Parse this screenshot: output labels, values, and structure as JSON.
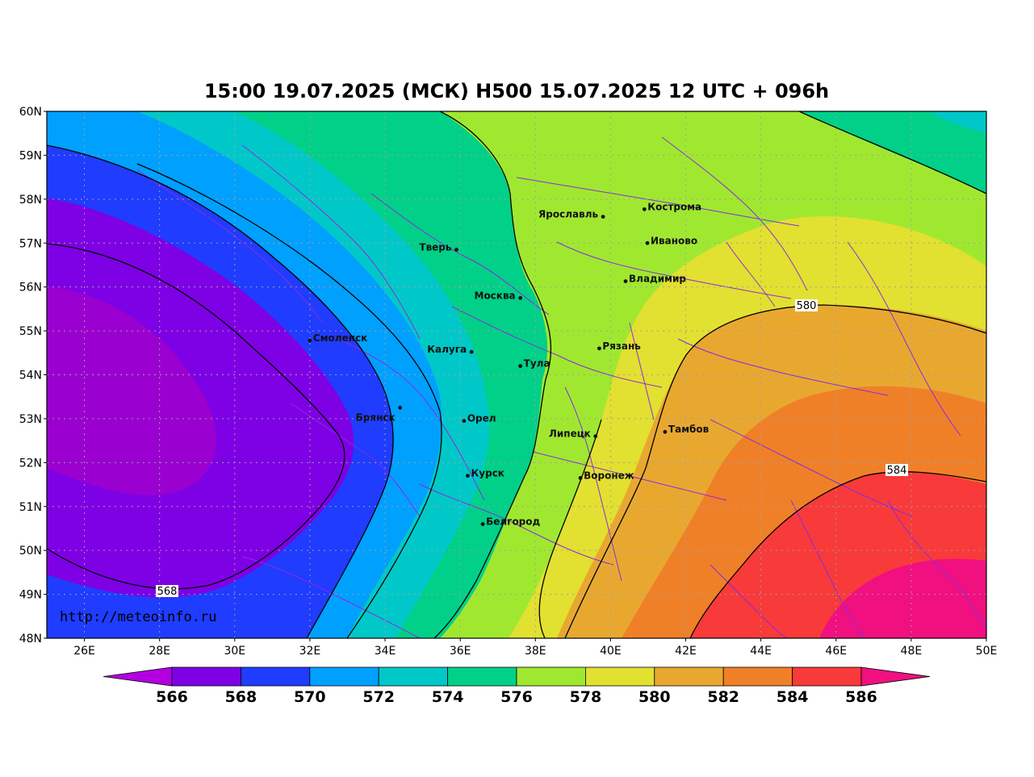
{
  "title": "15:00 19.07.2025 (МСК) H500  15.07.2025 12 UTC + 096h",
  "credit": "http://meteoinfo.ru",
  "axes": {
    "lat_ticks": [
      "60N",
      "59N",
      "58N",
      "57N",
      "56N",
      "55N",
      "54N",
      "53N",
      "52N",
      "51N",
      "50N",
      "49N",
      "48N"
    ],
    "lon_ticks": [
      "26E",
      "28E",
      "30E",
      "32E",
      "34E",
      "36E",
      "38E",
      "40E",
      "42E",
      "44E",
      "46E",
      "48E",
      "50E"
    ],
    "lat_values": [
      60,
      59,
      58,
      57,
      56,
      55,
      54,
      53,
      52,
      51,
      50,
      49,
      48
    ],
    "lon_values": [
      26,
      28,
      30,
      32,
      34,
      36,
      38,
      40,
      42,
      44,
      46,
      48,
      50
    ],
    "lon_range": [
      25,
      50
    ],
    "lat_range": [
      48,
      60
    ]
  },
  "cities": [
    {
      "name": "Кострома",
      "lon": 40.9,
      "lat": 57.77
    },
    {
      "name": "Ярославль",
      "lon": 39.8,
      "lat": 57.6
    },
    {
      "name": "Иваново",
      "lon": 40.98,
      "lat": 57.0
    },
    {
      "name": "Тверь",
      "lon": 35.9,
      "lat": 56.85
    },
    {
      "name": "Владимир",
      "lon": 40.4,
      "lat": 56.13
    },
    {
      "name": "Москва",
      "lon": 37.6,
      "lat": 55.75
    },
    {
      "name": "Смоленск",
      "lon": 32.0,
      "lat": 54.78
    },
    {
      "name": "Калуга",
      "lon": 36.3,
      "lat": 54.52
    },
    {
      "name": "Рязань",
      "lon": 39.7,
      "lat": 54.6
    },
    {
      "name": "Тула",
      "lon": 37.6,
      "lat": 54.2
    },
    {
      "name": "Брянск",
      "lon": 34.4,
      "lat": 53.25
    },
    {
      "name": "Орел",
      "lon": 36.1,
      "lat": 52.95
    },
    {
      "name": "Липецк",
      "lon": 39.6,
      "lat": 52.6
    },
    {
      "name": "Тамбов",
      "lon": 41.45,
      "lat": 52.7
    },
    {
      "name": "Курск",
      "lon": 36.2,
      "lat": 51.7
    },
    {
      "name": "Воронеж",
      "lon": 39.2,
      "lat": 51.65
    },
    {
      "name": "Белгород",
      "lon": 36.6,
      "lat": 50.6
    }
  ],
  "contour_labels": [
    "580",
    "584",
    "568"
  ],
  "colorbar": {
    "levels": [
      "566",
      "568",
      "570",
      "572",
      "574",
      "576",
      "578",
      "580",
      "582",
      "584",
      "586"
    ],
    "colors": [
      "#b400e0",
      "#7e00e4",
      "#1f3cff",
      "#00a0ff",
      "#00c8c8",
      "#00d088",
      "#a0e830",
      "#e2e030",
      "#e8a830",
      "#f08028",
      "#f83a3a",
      "#f0107f"
    ]
  },
  "field_colors": {
    "c564": "#9a00d0",
    "c566": "#7e00e4",
    "c568": "#1f3cff",
    "c570": "#00a0ff",
    "c572": "#00c8c8",
    "c574": "#00d088",
    "c576": "#a0e830",
    "c578": "#e2e030",
    "c580": "#e8a830",
    "c582": "#f08028",
    "c584": "#f83a3a",
    "c586": "#f0107f",
    "border": "#8a2be2",
    "grid": "#a0a0a0"
  }
}
